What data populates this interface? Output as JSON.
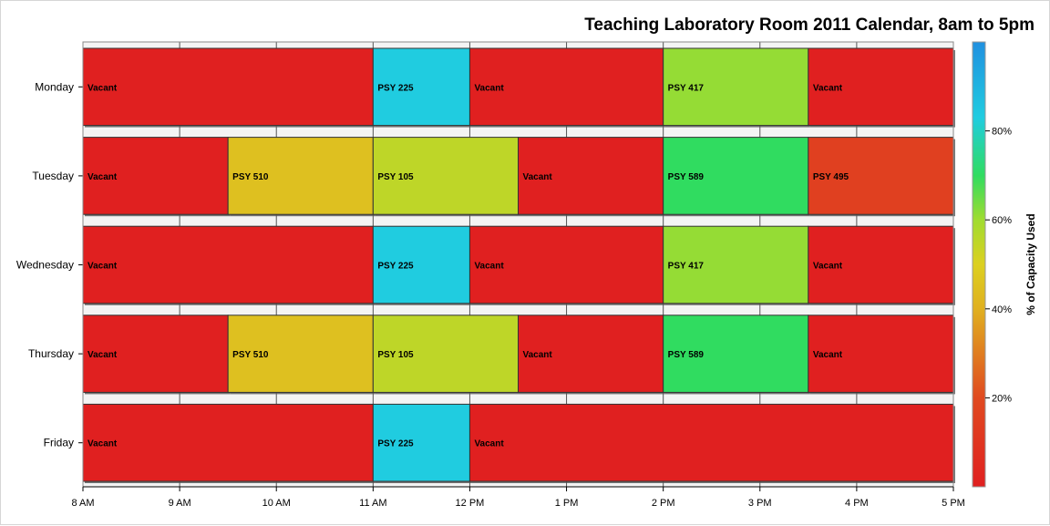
{
  "chart_data": {
    "type": "bar",
    "subtype": "horizontal-gantt",
    "title": "Teaching Laboratory Room 2011 Calendar, 8am to 5pm",
    "x_axis": {
      "min": 8,
      "max": 17,
      "ticks": [
        {
          "value": 8,
          "label": "8 AM"
        },
        {
          "value": 9,
          "label": "9 AM"
        },
        {
          "value": 10,
          "label": "10 AM"
        },
        {
          "value": 11,
          "label": "11 AM"
        },
        {
          "value": 12,
          "label": "12 PM"
        },
        {
          "value": 13,
          "label": "1 PM"
        },
        {
          "value": 14,
          "label": "2 PM"
        },
        {
          "value": 15,
          "label": "3 PM"
        },
        {
          "value": 16,
          "label": "4 PM"
        },
        {
          "value": 17,
          "label": "5 PM"
        }
      ]
    },
    "categories": [
      "Monday",
      "Tuesday",
      "Wednesday",
      "Thursday",
      "Friday"
    ],
    "rows": [
      {
        "day": "Monday",
        "segments": [
          {
            "label": "Vacant",
            "start": 8,
            "end": 11,
            "capacity": 0
          },
          {
            "label": "PSY 225",
            "start": 11,
            "end": 12,
            "capacity": 83
          },
          {
            "label": "Vacant",
            "start": 12,
            "end": 14,
            "capacity": 0
          },
          {
            "label": "PSY 417",
            "start": 14,
            "end": 15.5,
            "capacity": 61
          },
          {
            "label": "Vacant",
            "start": 15.5,
            "end": 17,
            "capacity": 0
          }
        ]
      },
      {
        "day": "Tuesday",
        "segments": [
          {
            "label": "Vacant",
            "start": 8,
            "end": 9.5,
            "capacity": 0
          },
          {
            "label": "PSY 510",
            "start": 9.5,
            "end": 11,
            "capacity": 45
          },
          {
            "label": "PSY 105",
            "start": 11,
            "end": 12.5,
            "capacity": 55
          },
          {
            "label": "Vacant",
            "start": 12.5,
            "end": 14,
            "capacity": 0
          },
          {
            "label": "PSY 589",
            "start": 14,
            "end": 15.5,
            "capacity": 70
          },
          {
            "label": "PSY 495",
            "start": 15.5,
            "end": 17,
            "capacity": 15
          }
        ]
      },
      {
        "day": "Wednesday",
        "segments": [
          {
            "label": "Vacant",
            "start": 8,
            "end": 11,
            "capacity": 0
          },
          {
            "label": "PSY 225",
            "start": 11,
            "end": 12,
            "capacity": 83
          },
          {
            "label": "Vacant",
            "start": 12,
            "end": 14,
            "capacity": 0
          },
          {
            "label": "PSY 417",
            "start": 14,
            "end": 15.5,
            "capacity": 61
          },
          {
            "label": "Vacant",
            "start": 15.5,
            "end": 17,
            "capacity": 0
          }
        ]
      },
      {
        "day": "Thursday",
        "segments": [
          {
            "label": "Vacant",
            "start": 8,
            "end": 9.5,
            "capacity": 0
          },
          {
            "label": "PSY 510",
            "start": 9.5,
            "end": 11,
            "capacity": 45
          },
          {
            "label": "PSY 105",
            "start": 11,
            "end": 12.5,
            "capacity": 55
          },
          {
            "label": "Vacant",
            "start": 12.5,
            "end": 14,
            "capacity": 0
          },
          {
            "label": "PSY 589",
            "start": 14,
            "end": 15.5,
            "capacity": 70
          },
          {
            "label": "Vacant",
            "start": 15.5,
            "end": 17,
            "capacity": 0
          }
        ]
      },
      {
        "day": "Friday",
        "segments": [
          {
            "label": "Vacant",
            "start": 8,
            "end": 11,
            "capacity": 0
          },
          {
            "label": "PSY 225",
            "start": 11,
            "end": 12,
            "capacity": 83
          },
          {
            "label": "Vacant",
            "start": 12,
            "end": 17,
            "capacity": 0
          }
        ]
      }
    ],
    "colorbar": {
      "title": "% of Capacity Used",
      "min": 0,
      "max": 100,
      "ticks": [
        {
          "value": 20,
          "label": "20%"
        },
        {
          "value": 40,
          "label": "40%"
        },
        {
          "value": 60,
          "label": "60%"
        },
        {
          "value": 80,
          "label": "80%"
        }
      ],
      "stops": [
        {
          "value": 0,
          "color": "#e02020"
        },
        {
          "value": 20,
          "color": "#e04a20"
        },
        {
          "value": 40,
          "color": "#e0b020"
        },
        {
          "value": 50,
          "color": "#dcd020"
        },
        {
          "value": 60,
          "color": "#a0dc30"
        },
        {
          "value": 70,
          "color": "#30dc60"
        },
        {
          "value": 83,
          "color": "#20cce0"
        },
        {
          "value": 100,
          "color": "#2090e0"
        }
      ]
    },
    "grid": true,
    "legend_position": "right"
  }
}
